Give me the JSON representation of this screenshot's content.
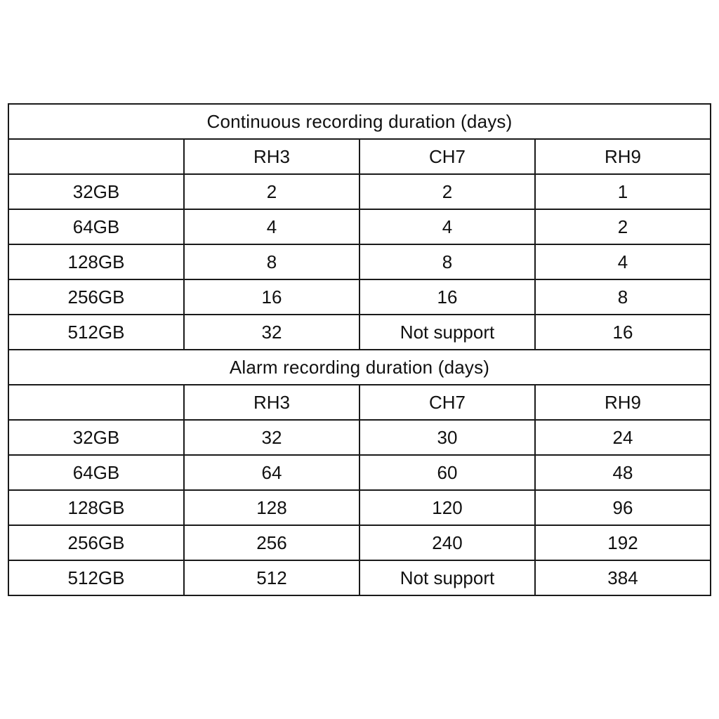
{
  "colors": {
    "section_header_bg": "#fbe5d6",
    "border": "#1a1a1a",
    "text": "#111111",
    "page_background": "#ffffff"
  },
  "tables": [
    {
      "title": "Continuous recording duration (days)",
      "columns": [
        "",
        "RH3",
        "CH7",
        "RH9"
      ],
      "rows": [
        {
          "label": "32GB",
          "values": [
            "2",
            "2",
            "1"
          ]
        },
        {
          "label": "64GB",
          "values": [
            "4",
            "4",
            "2"
          ]
        },
        {
          "label": "128GB",
          "values": [
            "8",
            "8",
            "4"
          ]
        },
        {
          "label": "256GB",
          "values": [
            "16",
            "16",
            "8"
          ]
        },
        {
          "label": "512GB",
          "values": [
            "32",
            "Not support",
            "16"
          ]
        }
      ]
    },
    {
      "title": "Alarm recording duration (days)",
      "columns": [
        "",
        "RH3",
        "CH7",
        "RH9"
      ],
      "rows": [
        {
          "label": "32GB",
          "values": [
            "32",
            "30",
            "24"
          ]
        },
        {
          "label": "64GB",
          "values": [
            "64",
            "60",
            "48"
          ]
        },
        {
          "label": "128GB",
          "values": [
            "128",
            "120",
            "96"
          ]
        },
        {
          "label": "256GB",
          "values": [
            "256",
            "240",
            "192"
          ]
        },
        {
          "label": "512GB",
          "values": [
            "512",
            "Not support",
            "384"
          ]
        }
      ]
    }
  ]
}
